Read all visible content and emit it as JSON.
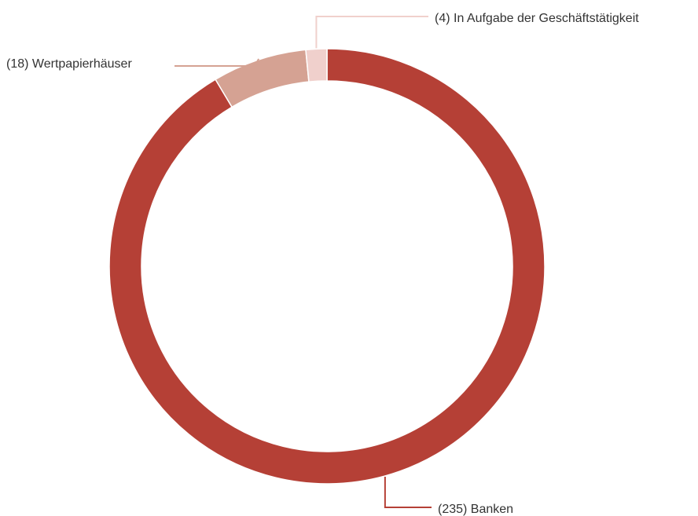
{
  "chart_data": {
    "type": "pie",
    "categories": [
      "Banken",
      "Wertpapierhäuser",
      "In Aufgabe der Geschäftstätigkeit"
    ],
    "values": [
      235,
      18,
      4
    ],
    "labels": [
      "(235) Banken",
      "(18) Wertpapierhäuser",
      "(4) In Aufgabe der Geschäftstätigkeit"
    ],
    "colors": [
      "#b54036",
      "#d5a293",
      "#f0d0cc"
    ],
    "donut": true,
    "start": "top, clockwise",
    "title": "",
    "legend": "none"
  }
}
